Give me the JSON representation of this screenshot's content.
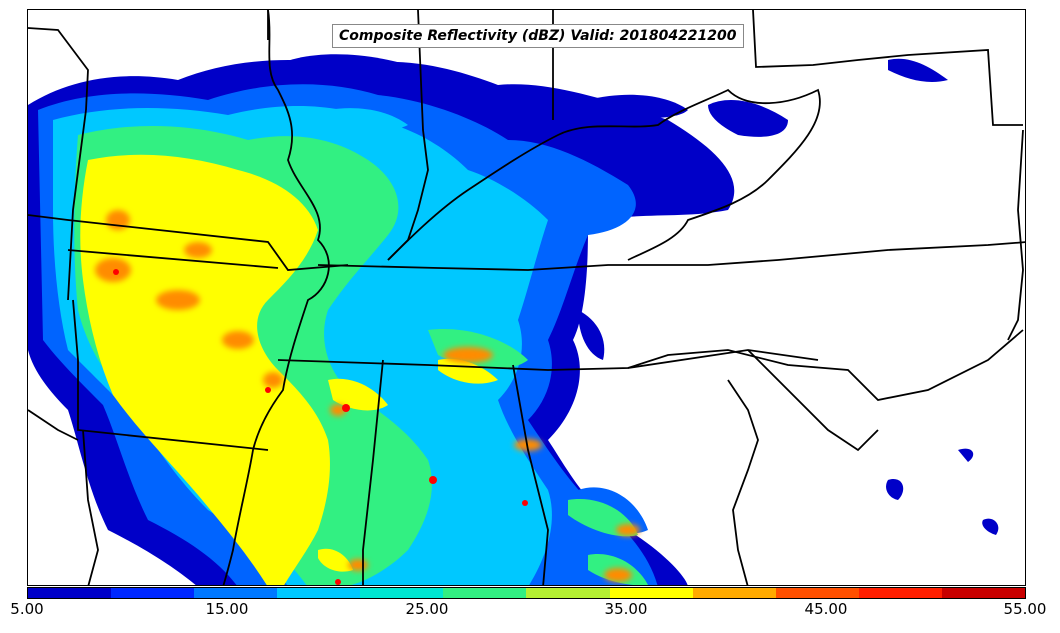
{
  "map": {
    "title": "Composite Reflectivity (dBZ) Valid: 201804221200",
    "colorbar": {
      "colors": [
        "#0000c8",
        "#0028ff",
        "#0078ff",
        "#00c8ff",
        "#00e6d2",
        "#32f082",
        "#b4f032",
        "#ffff00",
        "#ffaa00",
        "#ff5000",
        "#ff1e00",
        "#c80000"
      ],
      "tick_labels": [
        "5.00",
        "15.00",
        "25.00",
        "35.00",
        "45.00",
        "55.00"
      ],
      "min": 5,
      "max": 55
    },
    "palette": {
      "level_1": "#0000c8",
      "level_2": "#0064ff",
      "level_3": "#00c8ff",
      "level_4": "#32f082",
      "level_5": "#ffff00",
      "level_6": "#ff8c00",
      "level_7": "#ff0000"
    }
  }
}
